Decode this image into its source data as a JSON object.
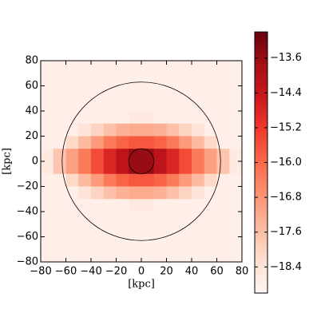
{
  "chart_data": {
    "type": "heatmap",
    "xlabel": "[kpc]",
    "ylabel": "[kpc]",
    "x": [
      -75,
      -65,
      -55,
      -45,
      -35,
      -25,
      -15,
      -5,
      5,
      15,
      25,
      35,
      45,
      55,
      65,
      75
    ],
    "y": [
      75,
      65,
      55,
      45,
      35,
      25,
      15,
      5,
      -5,
      -15,
      -25,
      -35,
      -45,
      -55,
      -65,
      -75
    ],
    "z": [
      [
        -18.8,
        -18.8,
        -18.8,
        -18.8,
        -18.8,
        -18.8,
        -18.8,
        -18.8,
        -18.8,
        -18.8,
        -18.8,
        -18.8,
        -18.8,
        -18.8,
        -18.8,
        -18.8
      ],
      [
        -18.8,
        -18.8,
        -18.8,
        -18.8,
        -18.8,
        -18.8,
        -18.8,
        -18.8,
        -18.8,
        -18.8,
        -18.8,
        -18.8,
        -18.8,
        -18.8,
        -18.8,
        -18.8
      ],
      [
        -18.8,
        -18.8,
        -18.8,
        -18.8,
        -18.8,
        -18.8,
        -18.8,
        -18.8,
        -18.8,
        -18.8,
        -18.8,
        -18.8,
        -18.8,
        -18.8,
        -18.8,
        -18.8
      ],
      [
        -18.8,
        -18.8,
        -18.8,
        -18.8,
        -18.8,
        -18.8,
        -18.8,
        -18.8,
        -18.8,
        -18.8,
        -18.8,
        -18.8,
        -18.8,
        -18.8,
        -18.8,
        -18.8
      ],
      [
        -18.8,
        -18.8,
        -18.8,
        -18.8,
        -18.8,
        -18.8,
        -18.8,
        -18.6,
        -18.6,
        -18.8,
        -18.8,
        -18.8,
        -18.8,
        -18.8,
        -18.8,
        -18.8
      ],
      [
        -18.8,
        -18.8,
        -18.8,
        -18.4,
        -18.0,
        -17.6,
        -17.3,
        -17.2,
        -17.2,
        -17.3,
        -17.6,
        -18.0,
        -18.4,
        -18.8,
        -18.8,
        -18.8
      ],
      [
        -18.8,
        -18.8,
        -18.1,
        -17.5,
        -16.9,
        -16.3,
        -15.9,
        -15.7,
        -15.7,
        -15.9,
        -16.3,
        -16.9,
        -17.5,
        -18.1,
        -18.8,
        -18.8
      ],
      [
        -18.6,
        -17.7,
        -17.0,
        -16.3,
        -15.5,
        -14.8,
        -14.2,
        -13.6,
        -13.6,
        -14.2,
        -14.8,
        -15.5,
        -16.3,
        -17.0,
        -17.7,
        -18.6
      ],
      [
        -18.6,
        -17.7,
        -17.0,
        -16.3,
        -15.5,
        -14.8,
        -14.2,
        -13.6,
        -13.6,
        -14.2,
        -14.8,
        -15.5,
        -16.3,
        -17.0,
        -17.7,
        -18.6
      ],
      [
        -18.8,
        -18.8,
        -18.1,
        -17.5,
        -16.9,
        -16.3,
        -15.9,
        -15.7,
        -15.7,
        -15.9,
        -16.3,
        -16.9,
        -17.5,
        -18.1,
        -18.8,
        -18.8
      ],
      [
        -18.8,
        -18.8,
        -18.8,
        -18.4,
        -18.0,
        -17.6,
        -17.3,
        -17.2,
        -17.2,
        -17.3,
        -17.6,
        -18.0,
        -18.4,
        -18.8,
        -18.8,
        -18.8
      ],
      [
        -18.8,
        -18.8,
        -18.8,
        -18.8,
        -18.8,
        -18.8,
        -18.8,
        -18.6,
        -18.6,
        -18.8,
        -18.8,
        -18.8,
        -18.8,
        -18.8,
        -18.8,
        -18.8
      ],
      [
        -18.8,
        -18.8,
        -18.8,
        -18.8,
        -18.8,
        -18.8,
        -18.8,
        -18.8,
        -18.8,
        -18.8,
        -18.8,
        -18.8,
        -18.8,
        -18.8,
        -18.8,
        -18.8
      ],
      [
        -18.8,
        -18.8,
        -18.8,
        -18.8,
        -18.8,
        -18.8,
        -18.8,
        -18.8,
        -18.8,
        -18.8,
        -18.8,
        -18.8,
        -18.8,
        -18.8,
        -18.8,
        -18.8
      ],
      [
        -18.8,
        -18.8,
        -18.8,
        -18.8,
        -18.8,
        -18.8,
        -18.8,
        -18.8,
        -18.8,
        -18.8,
        -18.8,
        -18.8,
        -18.8,
        -18.8,
        -18.8,
        -18.8
      ],
      [
        -18.8,
        -18.8,
        -18.8,
        -18.8,
        -18.8,
        -18.8,
        -18.8,
        -18.8,
        -18.8,
        -18.8,
        -18.8,
        -18.8,
        -18.8,
        -18.8,
        -18.8,
        -18.8
      ]
    ],
    "xlim": [
      -80,
      80
    ],
    "ylim": [
      -80,
      80
    ],
    "xticks": [
      {
        "value": -80,
        "label": "−80"
      },
      {
        "value": -60,
        "label": "−60"
      },
      {
        "value": -40,
        "label": "−40"
      },
      {
        "value": -20,
        "label": "−20"
      },
      0,
      20,
      40,
      60,
      80
    ],
    "yticks": [
      {
        "value": -80,
        "label": "−80"
      },
      {
        "value": -60,
        "label": "−60"
      },
      {
        "value": -40,
        "label": "−40"
      },
      {
        "value": -20,
        "label": "−20"
      },
      0,
      20,
      40,
      60,
      80
    ],
    "circles": [
      {
        "cx": 0,
        "cy": 0,
        "r": 63
      },
      {
        "cx": 0,
        "cy": 0,
        "r": 10
      }
    ],
    "circle_color": "#000000",
    "clim": [
      -19.0,
      -13.0
    ],
    "cticks": [
      {
        "value": -13.6,
        "label": "−13.6"
      },
      {
        "value": -14.4,
        "label": "−14.4"
      },
      {
        "value": -15.2,
        "label": "−15.2"
      },
      {
        "value": -16.0,
        "label": "−16.0"
      },
      {
        "value": -16.8,
        "label": "−16.8"
      },
      {
        "value": -17.6,
        "label": "−17.6"
      },
      {
        "value": -18.4,
        "label": "−18.4"
      }
    ],
    "colormap": [
      "#fff5f0",
      "#fee0d2",
      "#fcbba1",
      "#fc9272",
      "#fb6a4a",
      "#ef3b2c",
      "#cb181d",
      "#a50f15",
      "#67000d"
    ]
  }
}
